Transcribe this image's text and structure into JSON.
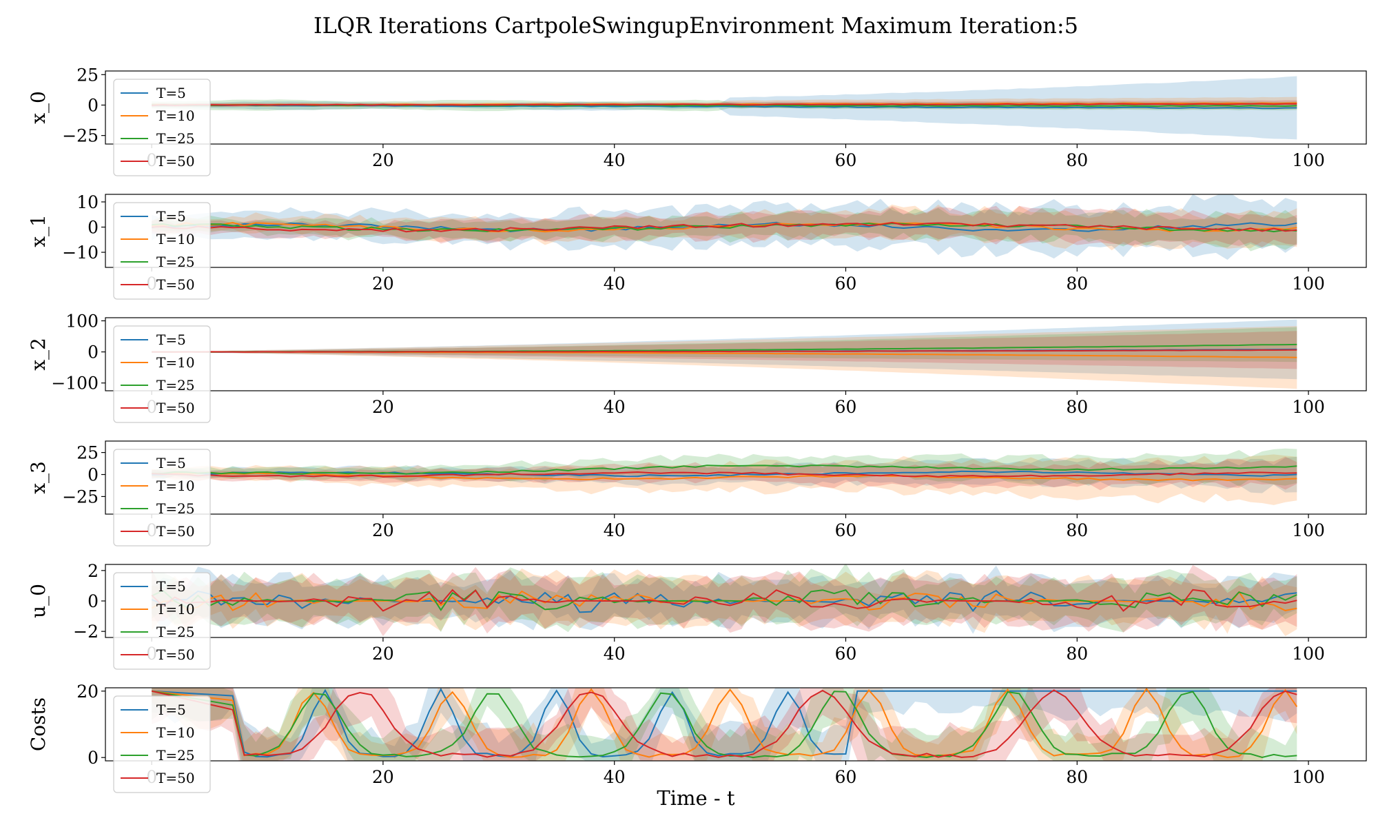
{
  "title": "ILQR Iterations CartpoleSwingupEnvironment Maximum Iteration:5",
  "xlabel": "Time - t",
  "legend": [
    {
      "label": "T=5",
      "color": "#1f77b4"
    },
    {
      "label": "T=10",
      "color": "#ff7f0e"
    },
    {
      "label": "T=25",
      "color": "#2ca02c"
    },
    {
      "label": "T=50",
      "color": "#d62728"
    }
  ],
  "chart_data": [
    {
      "type": "line",
      "ylabel": "x_0",
      "xlim": [
        -4,
        105
      ],
      "ylim": [
        -32,
        28
      ],
      "yticks": [
        -25,
        0,
        25
      ],
      "ytick_labels": [
        "−25",
        "0",
        "25"
      ],
      "xticks": [
        0,
        20,
        40,
        60,
        80,
        100
      ],
      "xtick_labels": [
        "0",
        "20",
        "40",
        "60",
        "80",
        "100"
      ]
    },
    {
      "type": "line",
      "ylabel": "x_1",
      "xlim": [
        -4,
        105
      ],
      "ylim": [
        -16,
        13
      ],
      "yticks": [
        -10,
        0,
        10
      ],
      "ytick_labels": [
        "−10",
        "0",
        "10"
      ],
      "xticks": [
        0,
        20,
        40,
        60,
        80,
        100
      ],
      "xtick_labels": [
        "0",
        "20",
        "40",
        "60",
        "80",
        "100"
      ]
    },
    {
      "type": "line",
      "ylabel": "x_2",
      "xlim": [
        -4,
        105
      ],
      "ylim": [
        -125,
        110
      ],
      "yticks": [
        -100,
        0,
        100
      ],
      "ytick_labels": [
        "−100",
        "0",
        "100"
      ],
      "xticks": [
        0,
        20,
        40,
        60,
        80,
        100
      ],
      "xtick_labels": [
        "0",
        "20",
        "40",
        "60",
        "80",
        "100"
      ]
    },
    {
      "type": "line",
      "ylabel": "x_3",
      "xlim": [
        -4,
        105
      ],
      "ylim": [
        -45,
        38
      ],
      "yticks": [
        -25,
        0,
        25
      ],
      "ytick_labels": [
        "−25",
        "0",
        "25"
      ],
      "xticks": [
        0,
        20,
        40,
        60,
        80,
        100
      ],
      "xtick_labels": [
        "0",
        "20",
        "40",
        "60",
        "80",
        "100"
      ]
    },
    {
      "type": "line",
      "ylabel": "u_0",
      "xlim": [
        -4,
        105
      ],
      "ylim": [
        -2.4,
        2.4
      ],
      "yticks": [
        -2,
        0,
        2
      ],
      "ytick_labels": [
        "−2",
        "0",
        "2"
      ],
      "xticks": [
        0,
        20,
        40,
        60,
        80,
        100
      ],
      "xtick_labels": [
        "0",
        "20",
        "40",
        "60",
        "80",
        "100"
      ]
    },
    {
      "type": "line",
      "ylabel": "Costs",
      "xlim": [
        -4,
        105
      ],
      "ylim": [
        -1,
        21
      ],
      "yticks": [
        0,
        20
      ],
      "ytick_labels": [
        "0",
        "20"
      ],
      "xticks": [
        0,
        20,
        40,
        60,
        80,
        100
      ],
      "xtick_labels": [
        "0",
        "20",
        "40",
        "60",
        "80",
        "100"
      ]
    }
  ]
}
